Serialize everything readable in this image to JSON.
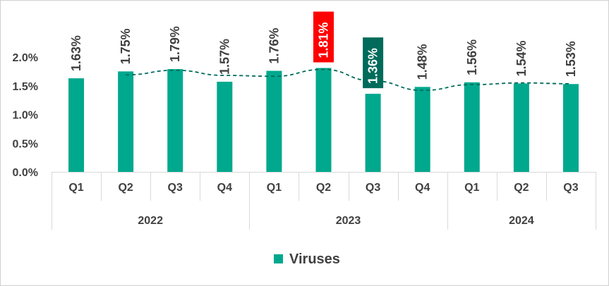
{
  "chart_data": {
    "type": "bar",
    "title": "",
    "xlabel": "",
    "ylabel": "",
    "ylim": [
      0,
      2.0
    ],
    "y_ticks": [
      "0.0%",
      "0.5%",
      "1.0%",
      "1.5%",
      "2.0%"
    ],
    "y_tick_values": [
      0,
      0.5,
      1.0,
      1.5,
      2.0
    ],
    "grid": false,
    "legend_position": "bottom",
    "categories": [
      "Q1",
      "Q2",
      "Q3",
      "Q4",
      "Q1",
      "Q2",
      "Q3",
      "Q4",
      "Q1",
      "Q2",
      "Q3"
    ],
    "year_groups": [
      {
        "label": "2022",
        "count": 4
      },
      {
        "label": "2023",
        "count": 4
      },
      {
        "label": "2024",
        "count": 3
      }
    ],
    "series": [
      {
        "name": "Viruses",
        "color": "#00A88E",
        "values": [
          1.63,
          1.75,
          1.79,
          1.57,
          1.76,
          1.81,
          1.36,
          1.48,
          1.56,
          1.54,
          1.53
        ],
        "labels": [
          "1.63%",
          "1.75%",
          "1.79%",
          "1.57%",
          "1.76%",
          "1.81%",
          "1.36%",
          "1.48%",
          "1.56%",
          "1.54%",
          "1.53%"
        ]
      }
    ],
    "trendline": {
      "style": "dashed",
      "color": "#006B5A",
      "type": "moving-average",
      "period": 2
    },
    "highlights": [
      {
        "index": 5,
        "label_bg": "#FF0000",
        "label_color": "#FFFFFF",
        "meaning": "max"
      },
      {
        "index": 6,
        "label_bg": "#006B5A",
        "label_color": "#FFFFFF",
        "meaning": "min"
      }
    ],
    "label_color": "#404040"
  }
}
